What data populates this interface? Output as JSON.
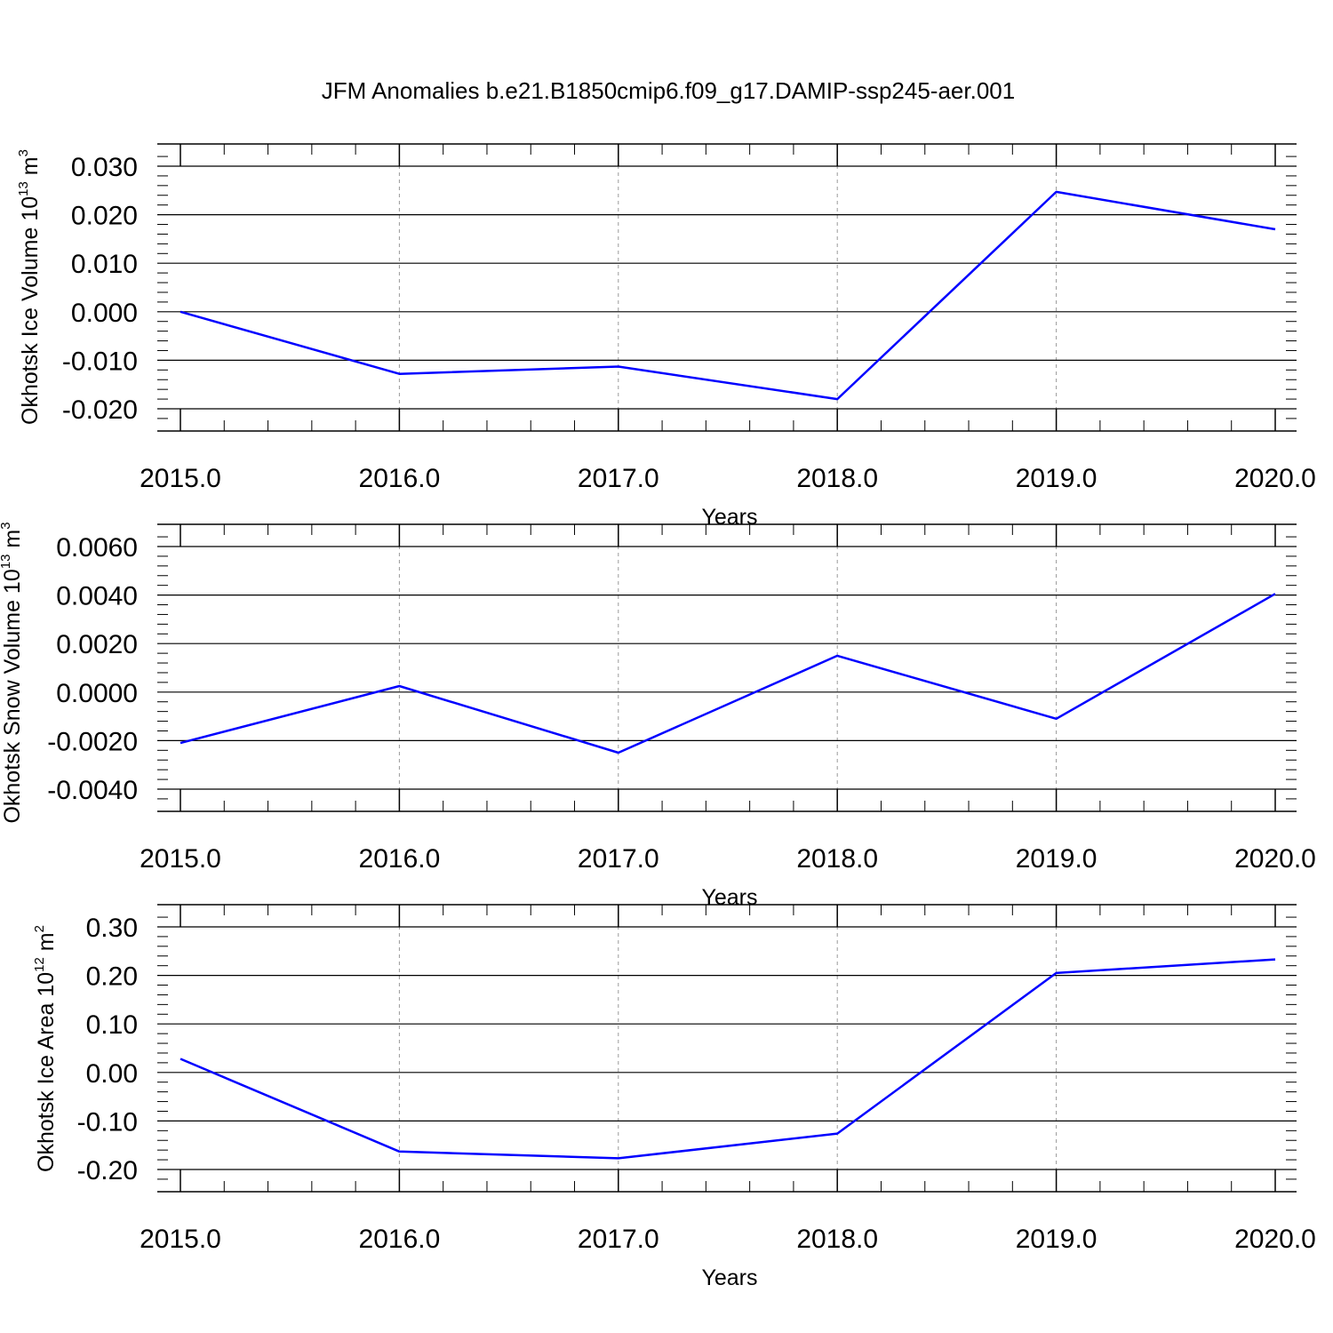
{
  "figure": {
    "title": "JFM Anomalies b.e21.B1850cmip6.f09_g17.DAMIP-ssp245-aer.001"
  },
  "colors": {
    "series": "#0000ff",
    "axis": "#000000",
    "grid": "#999999"
  },
  "chart_data": [
    {
      "type": "line",
      "title": "",
      "xlabel": "Years",
      "ylabel": {
        "text": "Okhotsk Ice Volume 10",
        "exp": "13",
        "unit": "m",
        "unit_exp": "3"
      },
      "x": [
        2015,
        2016,
        2017,
        2018,
        2019,
        2020
      ],
      "series": [
        {
          "values": [
            0.0,
            -0.0128,
            -0.0113,
            -0.018,
            0.0247,
            0.017
          ]
        }
      ],
      "xlim": [
        2015,
        2020
      ],
      "ylim": [
        -0.02,
        0.03
      ],
      "xticks": [
        "2015.0",
        "2016.0",
        "2017.0",
        "2018.0",
        "2019.0",
        "2020.0"
      ],
      "yticks": [
        {
          "value": 0.03,
          "label": "0.030"
        },
        {
          "value": 0.02,
          "label": "0.020"
        },
        {
          "value": 0.01,
          "label": "0.010"
        },
        {
          "value": 0.0,
          "label": "0.000"
        },
        {
          "value": -0.01,
          "label": "-0.010"
        },
        {
          "value": -0.02,
          "label": "-0.020"
        }
      ],
      "grid": "vertical dashed at major x ticks"
    },
    {
      "type": "line",
      "title": "",
      "xlabel": "Years",
      "ylabel": {
        "text": "Okhotsk Snow Volume 10",
        "exp": "13",
        "unit": "m",
        "unit_exp": "3"
      },
      "x": [
        2015,
        2016,
        2017,
        2018,
        2019,
        2020
      ],
      "series": [
        {
          "values": [
            -0.0021,
            0.00025,
            -0.0025,
            0.0015,
            -0.0011,
            0.00405
          ]
        }
      ],
      "xlim": [
        2015,
        2020
      ],
      "ylim": [
        -0.004,
        0.006
      ],
      "xticks": [
        "2015.0",
        "2016.0",
        "2017.0",
        "2018.0",
        "2019.0",
        "2020.0"
      ],
      "yticks": [
        {
          "value": 0.006,
          "label": "0.0060"
        },
        {
          "value": 0.004,
          "label": "0.0040"
        },
        {
          "value": 0.002,
          "label": "0.0020"
        },
        {
          "value": 0.0,
          "label": "0.0000"
        },
        {
          "value": -0.002,
          "label": "-0.0020"
        },
        {
          "value": -0.004,
          "label": "-0.0040"
        }
      ],
      "grid": "vertical dashed at major x ticks"
    },
    {
      "type": "line",
      "title": "",
      "xlabel": "Years",
      "ylabel": {
        "text": "Okhotsk Ice Area 10",
        "exp": "12",
        "unit": "m",
        "unit_exp": "2"
      },
      "x": [
        2015,
        2016,
        2017,
        2018,
        2019,
        2020
      ],
      "series": [
        {
          "values": [
            0.028,
            -0.163,
            -0.177,
            -0.126,
            0.205,
            0.233
          ]
        }
      ],
      "xlim": [
        2015,
        2020
      ],
      "ylim": [
        -0.2,
        0.3
      ],
      "xticks": [
        "2015.0",
        "2016.0",
        "2017.0",
        "2018.0",
        "2019.0",
        "2020.0"
      ],
      "yticks": [
        {
          "value": 0.3,
          "label": "0.30"
        },
        {
          "value": 0.2,
          "label": "0.20"
        },
        {
          "value": 0.1,
          "label": "0.10"
        },
        {
          "value": 0.0,
          "label": "0.00"
        },
        {
          "value": -0.1,
          "label": "-0.10"
        },
        {
          "value": -0.2,
          "label": "-0.20"
        }
      ],
      "grid": "vertical dashed at major x ticks"
    }
  ]
}
